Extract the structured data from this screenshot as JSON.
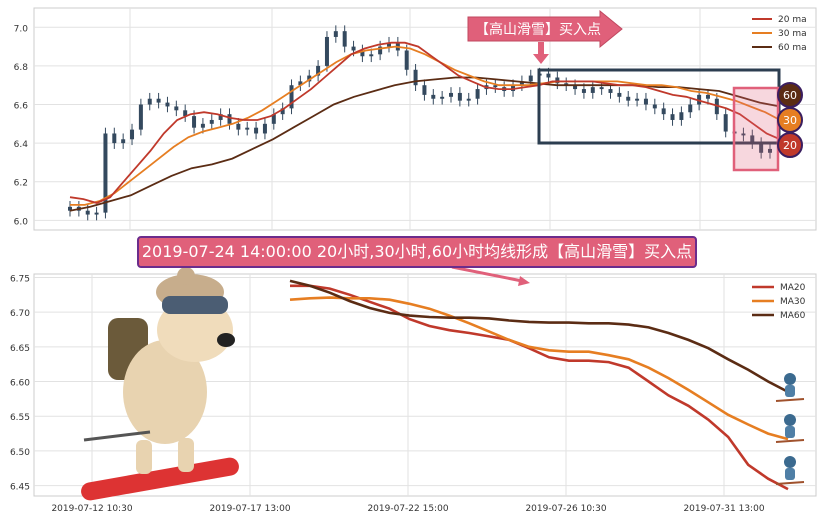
{
  "annotation": {
    "buy_signal_tag": "【高山滑雪】买入点",
    "banner_text": "2019-07-24 14:00:00 20小时,30小时,60小时均线形成【高山滑雪】买入点",
    "ma_badges": [
      "60",
      "30",
      "20"
    ]
  },
  "colors": {
    "ma20": "#c0392b",
    "ma30": "#e67e22",
    "ma60": "#5b2c14",
    "candle": "#34495e",
    "tag": "#e0607a",
    "box": "#2c3e50"
  },
  "chart_data": [
    {
      "type": "candlestick",
      "yticks": [
        "6.0",
        "6.2",
        "6.4",
        "6.6",
        "6.8",
        "7.0"
      ],
      "ylim": [
        5.95,
        7.1
      ],
      "legend": [
        "20 ma",
        "30 ma",
        "60 ma"
      ],
      "legend_position": "top-right",
      "close": [
        6.07,
        6.05,
        6.03,
        6.04,
        6.45,
        6.4,
        6.42,
        6.47,
        6.6,
        6.63,
        6.61,
        6.59,
        6.57,
        6.54,
        6.48,
        6.5,
        6.52,
        6.55,
        6.5,
        6.47,
        6.48,
        6.45,
        6.5,
        6.55,
        6.58,
        6.7,
        6.72,
        6.75,
        6.8,
        6.95,
        6.98,
        6.9,
        6.88,
        6.85,
        6.86,
        6.9,
        6.92,
        6.88,
        6.78,
        6.7,
        6.65,
        6.63,
        6.64,
        6.66,
        6.62,
        6.63,
        6.68,
        6.7,
        6.69,
        6.67,
        6.7,
        6.72,
        6.75,
        6.76,
        6.74,
        6.71,
        6.7,
        6.68,
        6.66,
        6.69,
        6.68,
        6.66,
        6.64,
        6.62,
        6.63,
        6.6,
        6.58,
        6.55,
        6.52,
        6.56,
        6.6,
        6.65,
        6.63,
        6.55,
        6.46,
        6.45,
        6.44,
        6.4,
        6.35,
        6.37
      ],
      "ma20": [
        6.12,
        6.11,
        6.09,
        6.12,
        6.2,
        6.28,
        6.36,
        6.45,
        6.52,
        6.55,
        6.56,
        6.55,
        6.53,
        6.52,
        6.52,
        6.54,
        6.58,
        6.63,
        6.68,
        6.74,
        6.8,
        6.86,
        6.89,
        6.91,
        6.92,
        6.92,
        6.9,
        6.85,
        6.8,
        6.75,
        6.72,
        6.69,
        6.68,
        6.68,
        6.69,
        6.7,
        6.72,
        6.72,
        6.72,
        6.72,
        6.71,
        6.7,
        6.7,
        6.69,
        6.67,
        6.65,
        6.64,
        6.62,
        6.6,
        6.58,
        6.55,
        6.5,
        6.45,
        6.42
      ],
      "ma30": [
        6.08,
        6.08,
        6.1,
        6.14,
        6.2,
        6.26,
        6.32,
        6.38,
        6.43,
        6.46,
        6.48,
        6.5,
        6.53,
        6.57,
        6.62,
        6.67,
        6.72,
        6.77,
        6.82,
        6.86,
        6.88,
        6.89,
        6.9,
        6.89,
        6.86,
        6.82,
        6.78,
        6.75,
        6.72,
        6.7,
        6.7,
        6.7,
        6.71,
        6.72,
        6.72,
        6.72,
        6.72,
        6.72,
        6.71,
        6.7,
        6.7,
        6.69,
        6.67,
        6.66,
        6.64,
        6.62,
        6.59,
        6.56,
        6.52
      ],
      "ma60": [
        6.05,
        6.07,
        6.1,
        6.13,
        6.18,
        6.23,
        6.27,
        6.29,
        6.32,
        6.37,
        6.42,
        6.48,
        6.54,
        6.6,
        6.64,
        6.67,
        6.7,
        6.72,
        6.73,
        6.74,
        6.74,
        6.73,
        6.72,
        6.71,
        6.7,
        6.7,
        6.7,
        6.7,
        6.7,
        6.69,
        6.69,
        6.68,
        6.67,
        6.64,
        6.61,
        6.59
      ]
    },
    {
      "type": "line",
      "xticks": [
        "2019-07-12 10:30",
        "2019-07-17 13:00",
        "2019-07-22 15:00",
        "2019-07-26 10:30",
        "2019-07-31 13:00"
      ],
      "yticks": [
        "6.45",
        "6.50",
        "6.55",
        "6.60",
        "6.65",
        "6.70",
        "6.75"
      ],
      "ylim": [
        6.435,
        6.755
      ],
      "legend_position": "top-right",
      "series": [
        {
          "name": "MA20",
          "color": "#c0392b",
          "values": [
            6.738,
            6.738,
            6.734,
            6.725,
            6.715,
            6.705,
            6.69,
            6.68,
            6.674,
            6.67,
            6.665,
            6.66,
            6.648,
            6.635,
            6.63,
            6.63,
            6.628,
            6.62,
            6.6,
            6.58,
            6.565,
            6.545,
            6.52,
            6.48,
            6.46,
            6.445
          ]
        },
        {
          "name": "MA30",
          "color": "#e67e22",
          "values": [
            6.718,
            6.72,
            6.721,
            6.72,
            6.72,
            6.718,
            6.712,
            6.705,
            6.695,
            6.684,
            6.672,
            6.66,
            6.65,
            6.645,
            6.643,
            6.643,
            6.638,
            6.632,
            6.62,
            6.605,
            6.588,
            6.57,
            6.552,
            6.538,
            6.525,
            6.517
          ]
        },
        {
          "name": "MA60",
          "color": "#5b2c14",
          "values": [
            6.745,
            6.738,
            6.728,
            6.716,
            6.706,
            6.699,
            6.695,
            6.693,
            6.692,
            6.692,
            6.691,
            6.688,
            6.686,
            6.685,
            6.685,
            6.684,
            6.684,
            6.682,
            6.678,
            6.67,
            6.66,
            6.648,
            6.632,
            6.617,
            6.6,
            6.585
          ]
        }
      ]
    }
  ]
}
